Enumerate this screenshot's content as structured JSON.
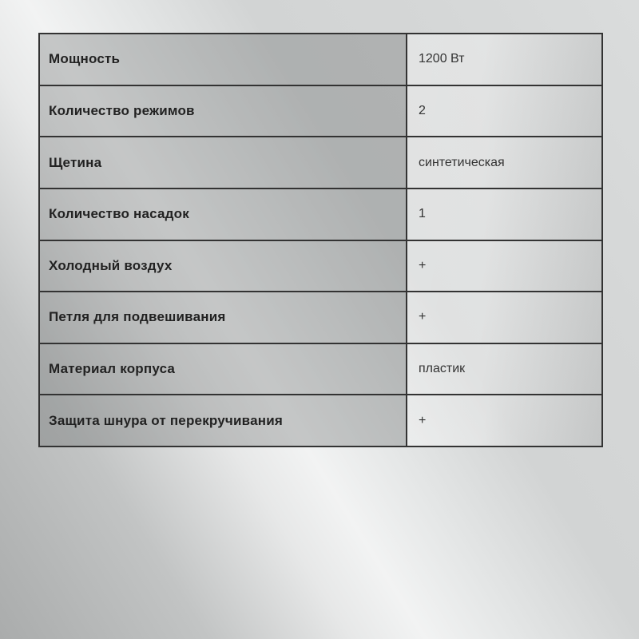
{
  "table": {
    "rows": [
      {
        "label": "Мощность",
        "value": "1200 Вт"
      },
      {
        "label": "Количество режимов",
        "value": "2"
      },
      {
        "label": "Щетина",
        "value": "синтетическая"
      },
      {
        "label": "Количество насадок",
        "value": "1"
      },
      {
        "label": "Холодный воздух",
        "value": "+"
      },
      {
        "label": "Петля для подвешивания",
        "value": "+"
      },
      {
        "label": "Материал корпуса",
        "value": "пластик"
      },
      {
        "label": "Защита шнура от перекручивания",
        "value": "+"
      }
    ]
  },
  "colors": {
    "background_silver_light": "#f2f3f3",
    "background_silver_dark": "#aaacac",
    "table_border": "#333333",
    "label_cell_gray": "#c5c6c6",
    "value_cell_light": "#ececec",
    "label_text": "#222222",
    "value_text": "#333333"
  }
}
